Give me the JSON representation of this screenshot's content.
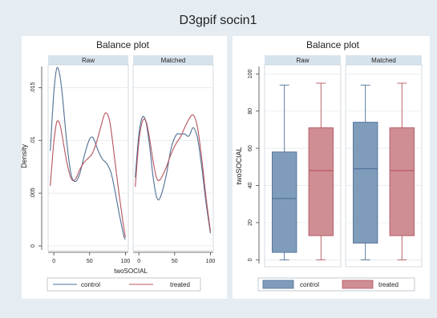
{
  "title": "D3gpif socin1",
  "colors": {
    "background": "#e5edf3",
    "plot_bg": "#ffffff",
    "strip_bg": "#d7e3ec",
    "control": "#4f6f95",
    "control_fill": "#7f9cbb",
    "treated": "#b4545c",
    "treated_fill": "#cf8e94",
    "grid": "#dfe6ec"
  },
  "chart_data": [
    {
      "type": "line",
      "title": "Balance plot",
      "ylabel": "Density",
      "xlabel": "twoSOCIAL",
      "ylim": [
        0,
        0.017
      ],
      "xlim": [
        -8,
        104
      ],
      "yticks": [
        0,
        0.005,
        0.01,
        0.015
      ],
      "ytick_labels": [
        "0",
        ".005",
        ".01",
        ".015"
      ],
      "xticks": [
        0,
        50,
        100
      ],
      "xtick_labels": [
        "0",
        "50",
        "100"
      ],
      "grid": true,
      "legend_position": "bottom",
      "legend": [
        "control",
        "treated"
      ],
      "panels": [
        {
          "label": "Raw",
          "series": [
            {
              "name": "control",
              "x": [
                -5,
                0,
                4,
                8,
                12,
                18,
                24,
                30,
                36,
                42,
                48,
                52,
                56,
                62,
                68,
                74,
                80,
                86,
                92,
                98,
                100
              ],
              "y": [
                0.009,
                0.0145,
                0.0168,
                0.0163,
                0.0142,
                0.0099,
                0.0068,
                0.0061,
                0.0068,
                0.0084,
                0.0098,
                0.0103,
                0.0101,
                0.009,
                0.0082,
                0.0078,
                0.0069,
                0.005,
                0.0028,
                0.0009,
                0.0006
              ]
            },
            {
              "name": "treated",
              "x": [
                -5,
                0,
                4,
                8,
                12,
                18,
                24,
                30,
                36,
                42,
                48,
                54,
                60,
                66,
                72,
                78,
                84,
                90,
                96,
                100
              ],
              "y": [
                0.0057,
                0.0098,
                0.0117,
                0.0116,
                0.0103,
                0.008,
                0.0064,
                0.0063,
                0.0072,
                0.0079,
                0.0083,
                0.0088,
                0.0099,
                0.0114,
                0.0126,
                0.0118,
                0.0088,
                0.0055,
                0.0025,
                0.0008
              ]
            }
          ]
        },
        {
          "label": "Matched",
          "series": [
            {
              "name": "control",
              "x": [
                -5,
                0,
                5,
                10,
                15,
                20,
                25,
                30,
                38,
                45,
                52,
                58,
                64,
                70,
                76,
                82,
                88,
                94,
                100
              ],
              "y": [
                0.0065,
                0.0105,
                0.0122,
                0.0117,
                0.0095,
                0.0065,
                0.0046,
                0.0046,
                0.0066,
                0.0092,
                0.0105,
                0.0106,
                0.0106,
                0.0104,
                0.0112,
                0.0102,
                0.0074,
                0.004,
                0.0012
              ]
            },
            {
              "name": "treated",
              "x": [
                -5,
                0,
                5,
                10,
                15,
                20,
                25,
                30,
                38,
                45,
                52,
                58,
                64,
                70,
                76,
                82,
                88,
                94,
                100
              ],
              "y": [
                0.0056,
                0.0098,
                0.0118,
                0.0118,
                0.0102,
                0.008,
                0.0064,
                0.0063,
                0.0074,
                0.0087,
                0.0097,
                0.0103,
                0.0112,
                0.012,
                0.0124,
                0.0112,
                0.0082,
                0.0045,
                0.0014
              ]
            }
          ]
        }
      ]
    },
    {
      "type": "box",
      "title": "Balance plot",
      "ylabel": "twoSOCIAL",
      "ylim": [
        -2,
        104
      ],
      "yticks": [
        0,
        20,
        40,
        60,
        80,
        100
      ],
      "ytick_labels": [
        "0",
        "20",
        "40",
        "60",
        "80",
        "100"
      ],
      "grid": true,
      "legend_position": "bottom",
      "legend": [
        "control",
        "treated"
      ],
      "panels": [
        {
          "label": "Raw",
          "boxes": [
            {
              "name": "control",
              "min": 0,
              "q1": 4,
              "median": 33,
              "q3": 58,
              "max": 94
            },
            {
              "name": "treated",
              "min": 0,
              "q1": 13,
              "median": 48,
              "q3": 71,
              "max": 95
            }
          ]
        },
        {
          "label": "Matched",
          "boxes": [
            {
              "name": "control",
              "min": 0,
              "q1": 9,
              "median": 49,
              "q3": 74,
              "max": 94
            },
            {
              "name": "treated",
              "min": 0,
              "q1": 13,
              "median": 48,
              "q3": 71,
              "max": 95
            }
          ]
        }
      ]
    }
  ]
}
